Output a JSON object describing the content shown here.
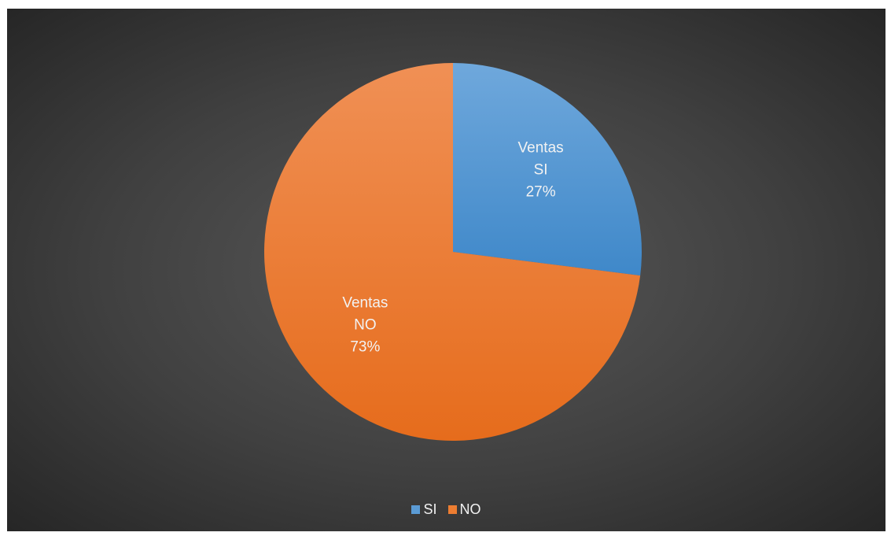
{
  "chart_data": {
    "type": "pie",
    "title": "",
    "categories": [
      "SI",
      "NO"
    ],
    "values": [
      27,
      73
    ],
    "unit": "%",
    "colors": [
      "#5b9bd5",
      "#ed7d31"
    ],
    "data_labels": [
      {
        "series": "Ventas",
        "category": "SI",
        "value": "27%"
      },
      {
        "series": "Ventas",
        "category": "NO",
        "value": "73%"
      }
    ],
    "legend": {
      "position": "bottom",
      "entries": [
        "SI",
        "NO"
      ]
    },
    "start_angle": "12 o'clock, clockwise"
  }
}
